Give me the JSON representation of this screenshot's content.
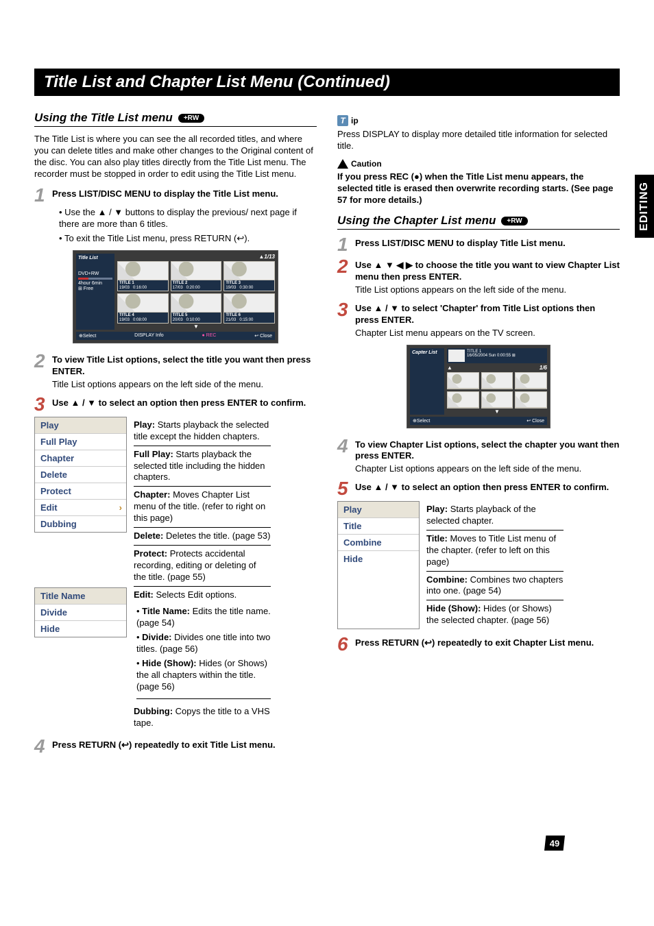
{
  "banner": "Title List and Chapter List Menu (Continued)",
  "side_tab": "EDITING",
  "page_number": "49",
  "badge_rw": "+RW",
  "left": {
    "heading": "Using the Title List menu",
    "intro": "The Title List is where you can see the all recorded titles, and where you can delete titles and make other changes to the Original content of the disc. You can also play titles directly from the Title List menu. The recorder must be stopped in order to edit using the Title List menu.",
    "step1_lead": "Press LIST/DISC MENU to display the Title List menu.",
    "step1_b1": "Use the ▲ / ▼ buttons to display the previous/ next page if there are more than 6 titles.",
    "step1_b2": "To exit the Title List menu, press RETURN (↩).",
    "step2_lead": "To view Title List options, select the title you want then press ENTER.",
    "step2_p": "Title List options appears on the left side of the menu.",
    "step3_lead": "Use ▲ / ▼ to select an option then press ENTER to confirm.",
    "menu1": [
      "Play",
      "Full Play",
      "Chapter",
      "Delete",
      "Protect",
      "Edit",
      "Dubbing"
    ],
    "menu2": [
      "Title Name",
      "Divide",
      "Hide"
    ],
    "defs": {
      "play": "Play: ",
      "play_t": "Starts playback the selected title except the hidden chapters.",
      "fullplay": "Full Play: ",
      "fullplay_t": "Starts playback the selected title including the hidden chapters.",
      "chapter": "Chapter: ",
      "chapter_t": "Moves Chapter List menu of the title. (refer to right on this page)",
      "delete": "Delete: ",
      "delete_t": "Deletes the title. (page 53)",
      "protect": "Protect: ",
      "protect_t": "Protects accidental recording, editing or deleting of the title. (page 55)",
      "edit": "Edit: ",
      "edit_t": "Selects Edit options.",
      "edit_b1": "Title Name: Edits the title name. (page 54)",
      "edit_b2": "Divide: Divides one title into two titles. (page 56)",
      "edit_b3": "Hide (Show): Hides (or Shows) the all chapters within the title. (page 56)",
      "dubbing": "Dubbing: ",
      "dubbing_t": "Copys the title to a VHS tape."
    },
    "step4_lead": "Press RETURN (↩) repeatedly to exit Title List menu."
  },
  "right": {
    "tip_label": "ip",
    "tip_p": "Press DISPLAY to display more detailed title information for selected title.",
    "caution_label": "Caution",
    "caution_p": "If you press REC (●) when the Title List menu appears, the selected title is erased then overwrite recording starts. (See page 57 for more details.)",
    "heading": "Using the Chapter List menu",
    "step1_lead": "Press LIST/DISC MENU to display Title List menu.",
    "step2_lead": "Use ▲ ▼ ◀ ▶ to choose the title you want to view Chapter List menu then press ENTER.",
    "step2_p": "Title List options appears on the left side of the menu.",
    "step3_lead": "Use ▲ / ▼ to select 'Chapter' from Title List options then press ENTER.",
    "step3_p": "Chapter List menu appears on the TV screen.",
    "step4_lead": "To view Chapter List options, select the chapter you want then press ENTER.",
    "step4_p": "Chapter List options appears on the left side of the menu.",
    "step5_lead": "Use ▲ / ▼ to select an option then press ENTER to confirm.",
    "menu": [
      "Play",
      "Title",
      "Combine",
      "Hide"
    ],
    "defs": {
      "play": "Play: ",
      "play_t": "Starts playback of the selected chapter.",
      "title": "Title: ",
      "title_t": "Moves to Title List menu of the chapter. (refer to left on this page)",
      "combine": "Combine: ",
      "combine_t": "Combines two chapters into one. (page 54)",
      "hide": "Hide (Show): ",
      "hide_t": "Hides (or Shows) the selected chapter. (page 56)"
    },
    "step6_lead": "Press RETURN (↩) repeatedly to exit Chapter List menu."
  },
  "osd_title": {
    "header_l": "Title List",
    "header_r": "1/13",
    "side_type": "DVD+RW",
    "side_free_t": "4hour 6min",
    "side_free_b": "⊞ Free",
    "cells": [
      {
        "t": "TITLE 1",
        "d": "19/03",
        "len": "0:16:00"
      },
      {
        "t": "TITLE 2",
        "d": "17/03",
        "len": "0:20:00"
      },
      {
        "t": "TITLE 3",
        "d": "19/03",
        "len": "0:30:00"
      },
      {
        "t": "TITLE 4",
        "d": "19/03",
        "len": "0:08:00"
      },
      {
        "t": "TITLE 5",
        "d": "20/03",
        "len": "0:10:00"
      },
      {
        "t": "TITLE 6",
        "d": "21/03",
        "len": "0:15:00"
      }
    ],
    "foot_select": "⊕Select",
    "foot_info": "DISPLAY Info",
    "foot_rec": "● REC",
    "foot_close": "↩ Close"
  },
  "osd_chapter": {
    "header_l": "Capter List",
    "top_t": "TITLE 1",
    "top_d": "16/05/2004 Sun 0:00:55  ⊞",
    "header_r": "1/6",
    "foot_select": "⊕Select",
    "foot_close": "↩ Close"
  }
}
